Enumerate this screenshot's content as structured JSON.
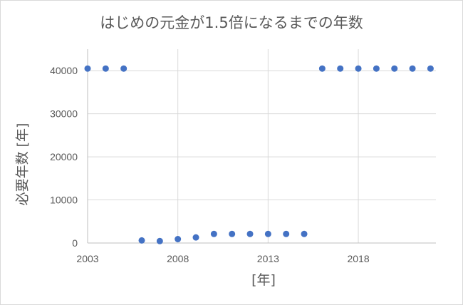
{
  "chart_data": {
    "type": "scatter",
    "title": "はじめの元金が1.5倍になるまでの年数",
    "xlabel": "[年]",
    "ylabel": "必要年数 [年]",
    "xlim": [
      2003,
      2022.3
    ],
    "ylim": [
      0,
      45000
    ],
    "x_ticks": [
      2003,
      2008,
      2013,
      2018
    ],
    "y_ticks": [
      0,
      10000,
      20000,
      30000,
      40000
    ],
    "grid": true,
    "marker_color": "#4472c4",
    "points": [
      {
        "x": 2003,
        "y": 40500
      },
      {
        "x": 2004,
        "y": 40500
      },
      {
        "x": 2005,
        "y": 40500
      },
      {
        "x": 2006,
        "y": 600
      },
      {
        "x": 2007,
        "y": 450
      },
      {
        "x": 2008,
        "y": 900
      },
      {
        "x": 2009,
        "y": 1300
      },
      {
        "x": 2010,
        "y": 2100
      },
      {
        "x": 2011,
        "y": 2100
      },
      {
        "x": 2012,
        "y": 2100
      },
      {
        "x": 2013,
        "y": 2100
      },
      {
        "x": 2014,
        "y": 2100
      },
      {
        "x": 2015,
        "y": 2100
      },
      {
        "x": 2016,
        "y": 40500
      },
      {
        "x": 2017,
        "y": 40500
      },
      {
        "x": 2018,
        "y": 40500
      },
      {
        "x": 2019,
        "y": 40500
      },
      {
        "x": 2020,
        "y": 40500
      },
      {
        "x": 2021,
        "y": 40500
      },
      {
        "x": 2022,
        "y": 40500
      }
    ]
  }
}
